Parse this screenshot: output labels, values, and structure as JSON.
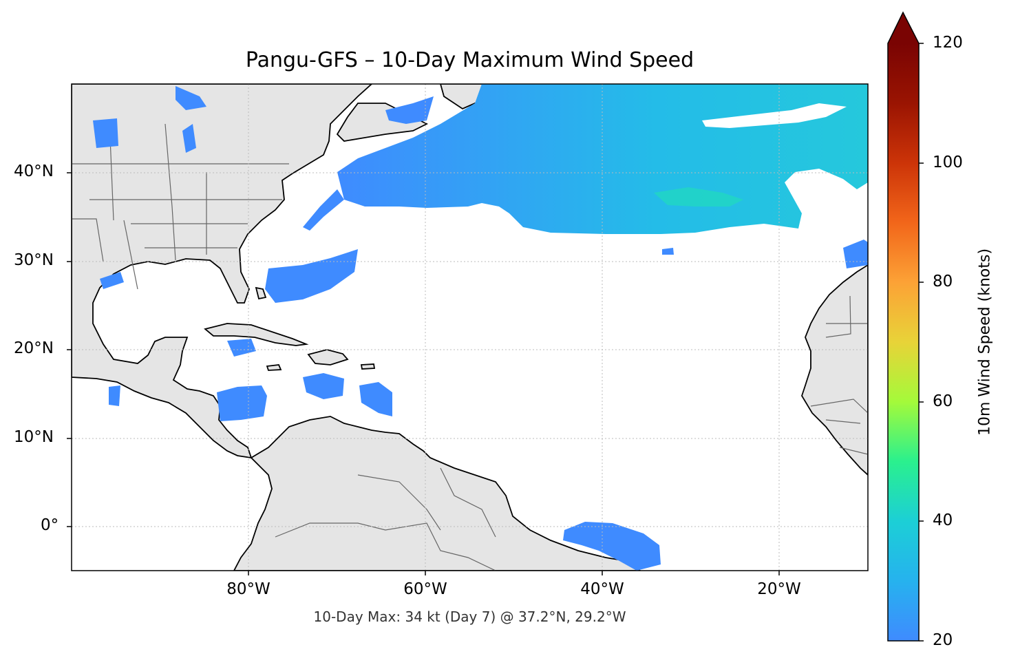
{
  "title": "Pangu-GFS – 10-Day Maximum Wind Speed",
  "footer": "10-Day Max: 34 kt (Day 7) @ 37.2°N, 29.2°W",
  "map": {
    "lon_range": [
      -100,
      -10
    ],
    "lat_range": [
      -5,
      50
    ],
    "lat_ticks": [
      {
        "value": 40,
        "label": "40°N"
      },
      {
        "value": 30,
        "label": "30°N"
      },
      {
        "value": 20,
        "label": "20°N"
      },
      {
        "value": 10,
        "label": "10°N"
      },
      {
        "value": 0,
        "label": "0°"
      }
    ],
    "lon_ticks": [
      {
        "value": -80,
        "label": "80°W"
      },
      {
        "value": -60,
        "label": "60°W"
      },
      {
        "value": -40,
        "label": "40°W"
      },
      {
        "value": -20,
        "label": "20°W"
      }
    ],
    "gridlines": true,
    "land_color": "#e5e5e5",
    "ocean_color": "#ffffff",
    "max_location": {
      "lat": 37.2,
      "lon": -29.2,
      "value_kt": 34,
      "day": 7
    }
  },
  "colorbar": {
    "label": "10m Wind Speed (knots)",
    "vmin": 20,
    "vmax": 120,
    "ticks": [
      {
        "value": 20,
        "label": "20"
      },
      {
        "value": 40,
        "label": "40"
      },
      {
        "value": 60,
        "label": "60"
      },
      {
        "value": 80,
        "label": "80"
      },
      {
        "value": 100,
        "label": "100"
      },
      {
        "value": 120,
        "label": "120"
      }
    ],
    "extend": "max",
    "colors": [
      "#3f8bff",
      "#1ccfd6",
      "#2af08e",
      "#a4fa3a",
      "#e8d338",
      "#fca236",
      "#f2661a",
      "#cc3408",
      "#9a1402",
      "#7a0403"
    ]
  }
}
